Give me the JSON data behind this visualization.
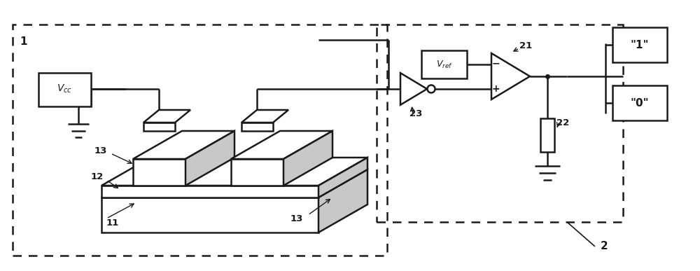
{
  "bg_color": "#ffffff",
  "line_color": "#1a1a1a",
  "gray_fill": "#c8c8c8",
  "fig_width": 10.0,
  "fig_height": 3.87,
  "dpi": 100
}
